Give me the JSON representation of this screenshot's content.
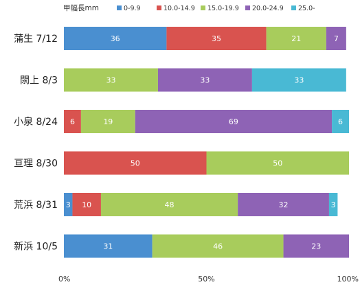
{
  "chart_data": {
    "type": "bar",
    "orientation": "horizontal",
    "stacked": true,
    "legend_title": "甲幅長mm",
    "legend_position": "top",
    "categories": [
      "蒲生 7/12",
      "閖上 8/3",
      "小泉 8/24",
      "亘理 8/30",
      "荒浜 8/31",
      "新浜 10/5"
    ],
    "series": [
      {
        "name": "0-9.9",
        "color": "#4a8fd0",
        "values": [
          36,
          0,
          0,
          0,
          3,
          31
        ]
      },
      {
        "name": "10.0-14.9",
        "color": "#d9534f",
        "values": [
          35,
          0,
          6,
          50,
          10,
          0
        ]
      },
      {
        "name": "15.0-19.9",
        "color": "#a8cc5c",
        "values": [
          21,
          33,
          19,
          50,
          48,
          46
        ]
      },
      {
        "name": "20.0-24.9",
        "color": "#8e63b5",
        "values": [
          7,
          33,
          69,
          0,
          32,
          23
        ]
      },
      {
        "name": "25.0-",
        "color": "#49b9d4",
        "values": [
          0,
          33,
          6,
          0,
          3,
          0
        ]
      }
    ],
    "xlim": [
      0,
      100
    ],
    "x_ticks": [
      "0%",
      "50%",
      "100%"
    ],
    "grid": false
  }
}
